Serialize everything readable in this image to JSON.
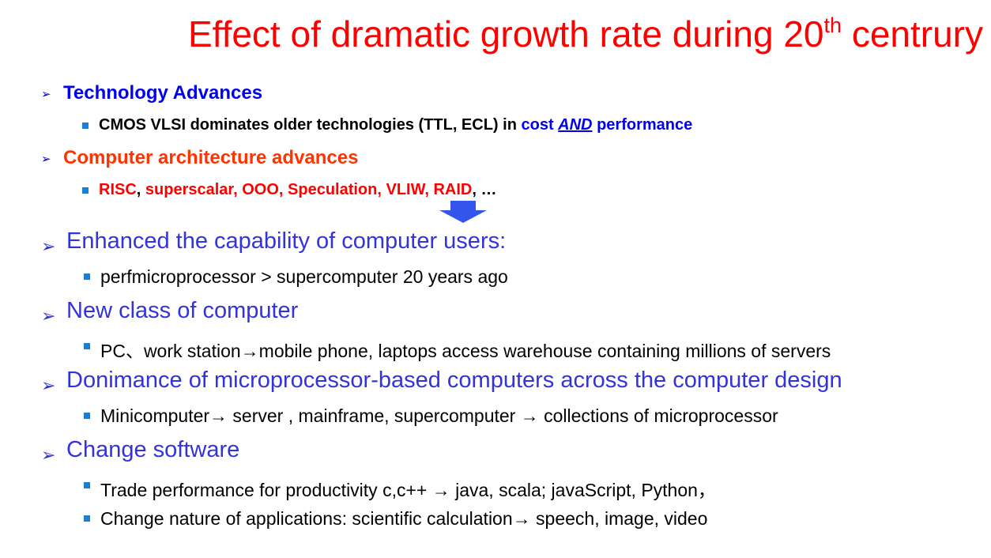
{
  "title": {
    "main": "Effect of dramatic growth rate during 20",
    "sup": "th",
    "tail": " centrury"
  },
  "section1": {
    "heading": "Technology Advances",
    "bullet": {
      "text": "CMOS VLSI dominates older technologies (TTL, ECL)  in ",
      "blue1": "cost ",
      "emph": "AND",
      "blue2": " performance"
    }
  },
  "section2": {
    "heading": "Computer architecture advances",
    "bullet": {
      "risc": "RISC",
      "comma": ", ",
      "list": "superscalar, OOO, Speculation, VLIW, RAID",
      "tail": ", …"
    }
  },
  "down_arrow": {
    "color": "#3355ee"
  },
  "items": [
    {
      "heading": "Enhanced the capability of computer users:",
      "bullets": [
        "perfmicroprocessor > supercomputer 20 years ago"
      ]
    },
    {
      "heading": "New class of computer",
      "bullets": [
        "PC、work station→mobile phone, laptops  access warehouse containing millions of servers"
      ]
    },
    {
      "heading": "Donimance of microprocessor-based computers across the computer design",
      "bullets": [
        "Minicomputer→ server , mainframe, supercomputer → collections of microprocessor"
      ]
    },
    {
      "heading": "Change software",
      "bullets": [
        "Trade performance for productivity   c,c++ → java, scala;  javaScript, Python，",
        "Change nature of applications:  scientific calculation→ speech, image, video"
      ]
    }
  ],
  "colors": {
    "title": "#ff0000",
    "heading_blue": "#0000ee",
    "heading_orange": "#ff3300",
    "heading_light_blue": "#3333dd",
    "bullet_square": "#1a7fd6"
  },
  "icons": {
    "level1": "chevron-arrow-icon",
    "level2": "square-bullet-icon"
  }
}
